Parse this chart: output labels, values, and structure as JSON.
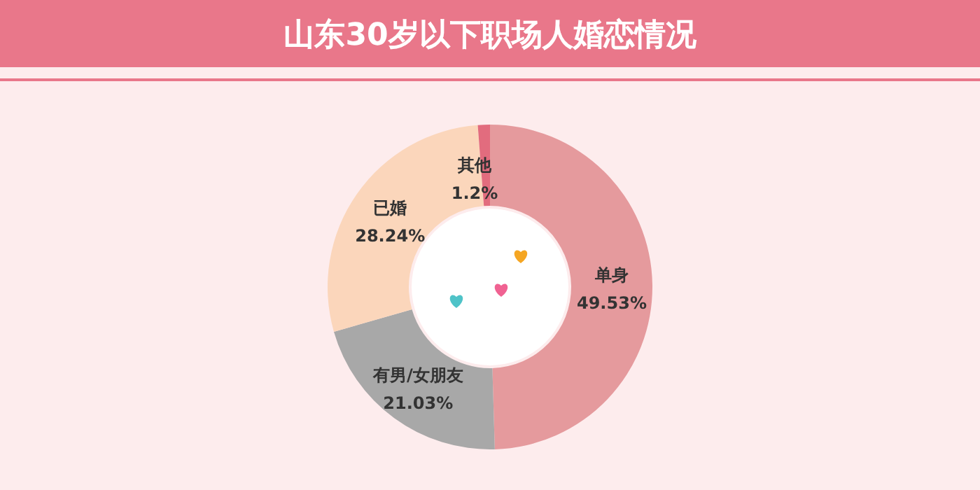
{
  "chart_data": {
    "type": "donut",
    "title": "山东30岁以下职场人婚恋情况",
    "categories": [
      "单身",
      "有男/女朋友",
      "已婚",
      "其他"
    ],
    "values": [
      49.53,
      21.03,
      28.24,
      1.2
    ],
    "colors": [
      "#e59a9d",
      "#a8a8a8",
      "#fbd6bb",
      "#e26c7e"
    ],
    "value_labels": [
      "49.53%",
      "21.03%",
      "28.24%",
      "1.2%"
    ]
  }
}
